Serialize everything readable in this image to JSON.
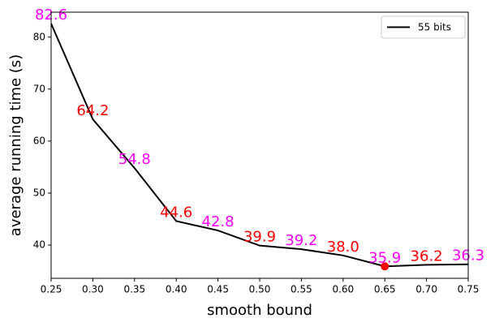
{
  "chart_data": {
    "type": "line",
    "xlabel": "smooth bound",
    "ylabel": "average running time (s)",
    "x": [
      0.25,
      0.3,
      0.35,
      0.4,
      0.45,
      0.5,
      0.55,
      0.6,
      0.65,
      0.7,
      0.75
    ],
    "series": [
      {
        "name": "55 bits",
        "color": "#000000",
        "values": [
          82.6,
          64.2,
          54.8,
          44.6,
          42.8,
          39.9,
          39.2,
          38.0,
          35.9,
          36.2,
          36.3
        ],
        "value_labels": [
          "82.6",
          "64.2",
          "54.8",
          "44.6",
          "42.8",
          "39.9",
          "39.2",
          "38.0",
          "35.9",
          "36.2",
          "36.3"
        ],
        "value_label_colors": [
          "#ff00ff",
          "#ff0000",
          "#ff00ff",
          "#ff0000",
          "#ff00ff",
          "#ff0000",
          "#ff00ff",
          "#ff0000",
          "#ff00ff",
          "#ff0000",
          "#ff00ff"
        ],
        "min_marker_color": "#ff0000"
      }
    ],
    "xlim": [
      0.25,
      0.75
    ],
    "xticks": [
      0.25,
      {
        "value": 0.3,
        "label": "0.30"
      },
      0.35,
      {
        "value": 0.4,
        "label": "0.40"
      },
      0.45,
      {
        "value": 0.5,
        "label": "0.50"
      },
      0.55,
      {
        "value": 0.6,
        "label": "0.60"
      },
      0.65,
      {
        "value": 0.7,
        "label": "0.70"
      },
      0.75
    ],
    "ylim": [
      33.6,
      84.8
    ],
    "yticks": [
      40,
      50,
      60,
      70,
      80
    ],
    "legend": "upper right"
  }
}
